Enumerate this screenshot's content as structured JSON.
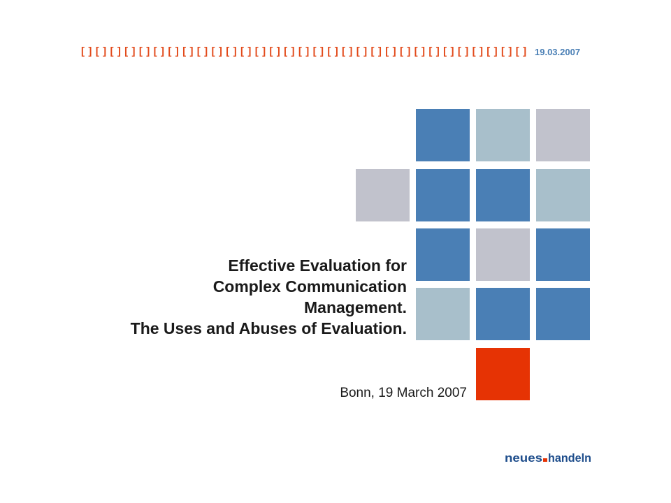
{
  "header": {
    "bracket_pattern": "[ ] [ ] [ ] [ ] [ ] [ ] [ ] [ ] [ ] [ ] [ ] [ ] [ ] [ ] [ ] [ ] [ ] [ ] [ ] [ ] [ ] [ ] [ ] [ ] [ ] [ ] [ ] [ ] [ ] [ ] [ ] [ ] [ ] [ ]",
    "date": "19.03.2007"
  },
  "colors": {
    "accent_orange": "#e24a1b",
    "tile_blue": "#4a7fb5",
    "tile_light_blue": "#a8bfcb",
    "tile_grey": "#c1c2cc",
    "tile_red": "#e63304",
    "date_blue": "#4a7fb5",
    "logo_text": "#1f4e8c",
    "logo_dot": "#e63304"
  },
  "tiles": [
    {
      "color": "blue"
    },
    {
      "color": "light-blue"
    },
    {
      "color": "grey"
    },
    {
      "color": "grey"
    },
    {
      "color": "blue"
    },
    {
      "color": "blue"
    },
    {
      "color": "light-blue"
    },
    {
      "color": "blue"
    },
    {
      "color": "grey"
    },
    {
      "color": "blue"
    },
    {
      "color": "light-blue"
    },
    {
      "color": "blue"
    },
    {
      "color": "blue"
    },
    {
      "color": "red"
    }
  ],
  "title": {
    "line1": "Effective Evaluation for",
    "line2": "Complex Communication",
    "line3": "Management.",
    "line4": "The Uses and Abuses of Evaluation."
  },
  "subtitle": "Bonn, 19 March 2007",
  "logo": {
    "part1": "neues",
    "part2": "handeln",
    "icon": "neues-handeln-logo"
  }
}
